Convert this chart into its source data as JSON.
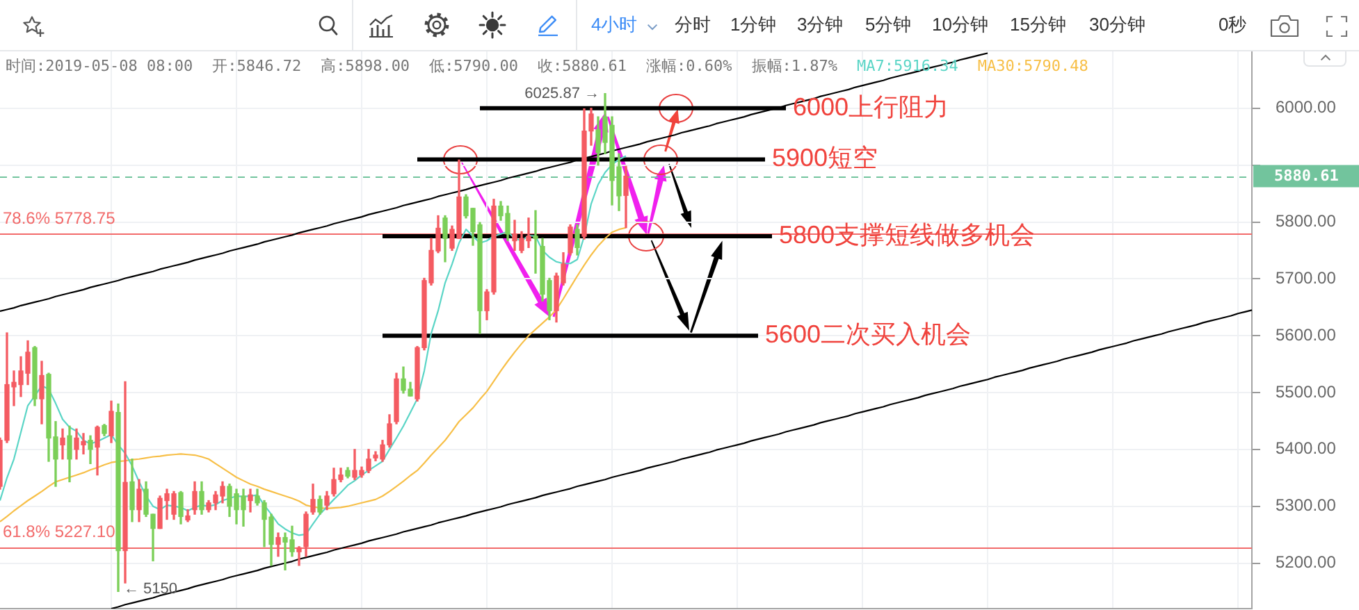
{
  "chart_data": {
    "type": "candlestick",
    "categories": [
      null,
      null,
      null,
      null,
      null,
      null,
      null,
      null,
      null,
      null,
      null,
      null,
      null,
      null,
      null,
      null,
      null,
      null,
      null,
      null,
      null,
      null,
      null,
      null,
      null,
      null,
      null,
      null,
      null,
      null,
      null,
      null,
      null,
      null,
      null,
      null,
      null,
      null,
      null,
      null,
      null,
      null,
      null,
      null,
      null,
      null,
      null,
      null,
      null,
      null,
      null,
      null,
      null,
      null,
      null,
      null,
      null,
      null,
      null,
      null,
      null,
      null,
      null,
      null,
      null,
      null,
      null,
      null,
      null,
      null,
      null,
      null,
      null,
      null,
      null,
      null,
      null,
      null,
      null,
      null,
      null,
      null,
      null,
      null,
      null,
      null,
      null,
      null,
      null,
      null,
      null,
      null,
      null,
      null,
      null,
      null,
      null,
      null,
      null,
      null,
      null,
      null,
      null,
      null,
      null,
      null,
      null,
      null,
      null,
      null,
      null,
      null,
      null,
      null,
      null,
      null,
      null,
      null,
      null,
      null,
      null,
      null,
      null,
      null,
      null,
      null,
      null,
      null,
      null,
      null,
      null,
      null,
      null,
      null,
      null,
      null,
      null,
      null,
      null,
      null,
      null,
      null,
      null,
      null,
      null,
      null,
      null,
      null,
      null,
      null,
      null,
      null,
      null,
      null,
      null,
      null,
      null,
      null,
      null,
      null,
      null,
      null,
      null,
      null,
      null,
      null,
      null,
      null,
      null,
      null,
      null,
      null,
      null,
      null,
      null,
      null,
      null,
      null,
      null,
      null,
      null
    ],
    "ohlc": [
      [
        5335,
        5420,
        5330,
        5416
      ],
      [
        5416,
        5605,
        5412,
        5514
      ],
      [
        5510,
        5538,
        5477,
        5518
      ],
      [
        5514,
        5563,
        5493,
        5538
      ],
      [
        5534,
        5591,
        5514,
        5571
      ],
      [
        5579,
        5581,
        5477,
        5489
      ],
      [
        5489,
        5555,
        5445,
        5530
      ],
      [
        5532,
        5534,
        5379,
        5420
      ],
      [
        5422,
        5449,
        5335,
        5383
      ],
      [
        5408,
        5436,
        5383,
        5420
      ],
      [
        5424,
        5441,
        5343,
        5383
      ],
      [
        5400,
        5436,
        5383,
        5420
      ],
      [
        5408,
        5428,
        5392,
        5414
      ],
      [
        5416,
        5424,
        5375,
        5400
      ],
      [
        5404,
        5441,
        5355,
        5439
      ],
      [
        5442,
        5444,
        5424,
        5428
      ],
      [
        5424,
        5485,
        5412,
        5467
      ],
      [
        5465,
        5480,
        5150,
        5222
      ],
      [
        5222,
        5519,
        5165,
        5342
      ],
      [
        5343,
        5383,
        5273,
        5294
      ],
      [
        5294,
        5347,
        5273,
        5330
      ],
      [
        5330,
        5343,
        5282,
        5286
      ],
      [
        5286,
        5286,
        5204,
        5261
      ],
      [
        5261,
        5318,
        5261,
        5314
      ],
      [
        5310,
        5330,
        5277,
        5322
      ],
      [
        5286,
        5326,
        5277,
        5322
      ],
      [
        5324,
        5326,
        5269,
        5282
      ],
      [
        5276,
        5294,
        5273,
        5283
      ],
      [
        5294,
        5343,
        5286,
        5326
      ],
      [
        5326,
        5343,
        5286,
        5294
      ],
      [
        5294,
        5310,
        5290,
        5306
      ],
      [
        5306,
        5326,
        5294,
        5320
      ],
      [
        5318,
        5343,
        5306,
        5335
      ],
      [
        5335,
        5339,
        5282,
        5300
      ],
      [
        5322,
        5330,
        5269,
        5294
      ],
      [
        5318,
        5330,
        5265,
        5294
      ],
      [
        5310,
        5330,
        5290,
        5320
      ],
      [
        5318,
        5330,
        5302,
        5306
      ],
      [
        5306,
        5310,
        5229,
        5277
      ],
      [
        5281,
        5286,
        5196,
        5233
      ],
      [
        5233,
        5253,
        5212,
        5245
      ],
      [
        5245,
        5253,
        5188,
        5237
      ],
      [
        5241,
        5265,
        5212,
        5220
      ],
      [
        5220,
        5229,
        5196,
        5227
      ],
      [
        5229,
        5290,
        5212,
        5286
      ],
      [
        5290,
        5339,
        5286,
        5312
      ],
      [
        5312,
        5318,
        5286,
        5290
      ],
      [
        5302,
        5326,
        5294,
        5318
      ],
      [
        5322,
        5367,
        5318,
        5347
      ],
      [
        5347,
        5367,
        5343,
        5355
      ],
      [
        5363,
        5368,
        5350,
        5353
      ],
      [
        5351,
        5400,
        5347,
        5363
      ],
      [
        5355,
        5369,
        5351,
        5363
      ],
      [
        5363,
        5400,
        5359,
        5383
      ],
      [
        5385,
        5396,
        5380,
        5390
      ],
      [
        5383,
        5416,
        5379,
        5408
      ],
      [
        5408,
        5461,
        5404,
        5445
      ],
      [
        5449,
        5534,
        5445,
        5524
      ],
      [
        5524,
        5545,
        5499,
        5504
      ],
      [
        5506,
        5518,
        5494,
        5494
      ],
      [
        5489,
        5581,
        5485,
        5579
      ],
      [
        5579,
        5701,
        5575,
        5697
      ],
      [
        5693,
        5771,
        5689,
        5750
      ],
      [
        5749,
        5811,
        5746,
        5789
      ],
      [
        5807,
        5811,
        5730,
        5771
      ],
      [
        5754,
        5793,
        5750,
        5787
      ],
      [
        5771,
        5909,
        5771,
        5844
      ],
      [
        5844,
        5848,
        5807,
        5811
      ],
      [
        5824,
        5824,
        5759,
        5783
      ],
      [
        5795,
        5799,
        5604,
        5644
      ],
      [
        5644,
        5681,
        5628,
        5677
      ],
      [
        5677,
        5840,
        5673,
        5828
      ],
      [
        5828,
        5836,
        5803,
        5811
      ],
      [
        5815,
        5828,
        5767,
        5779
      ],
      [
        5767,
        5803,
        5750,
        5779
      ],
      [
        5750,
        5783,
        5746,
        5771
      ],
      [
        5767,
        5807,
        5755,
        5775
      ],
      [
        5775,
        5820,
        5710,
        5771
      ],
      [
        5757,
        5771,
        5661,
        5673
      ],
      [
        5697,
        5701,
        5628,
        5644
      ],
      [
        5644,
        5710,
        5624,
        5705
      ],
      [
        5693,
        5746,
        5689,
        5726
      ],
      [
        5746,
        5795,
        5742,
        5791
      ],
      [
        5787,
        5795,
        5742,
        5755
      ],
      [
        5775,
        5999,
        5770,
        5960
      ],
      [
        5960,
        6000,
        5935,
        5990
      ],
      [
        5962,
        5985,
        5900,
        5922
      ],
      [
        5985,
        6025.87,
        5920,
        5940
      ],
      [
        5970,
        5985,
        5830,
        5873
      ],
      [
        5897,
        5920,
        5820,
        5846
      ],
      [
        5846.72,
        5898,
        5790,
        5880.61
      ],
      null,
      null,
      null,
      null,
      null,
      null,
      null,
      null,
      null,
      null,
      null,
      null,
      null,
      null,
      null,
      null,
      null,
      null,
      null,
      null,
      null,
      null,
      null,
      null,
      null,
      null,
      null,
      null,
      null,
      null,
      null,
      null,
      null,
      null,
      null,
      null,
      null,
      null,
      null,
      null,
      null,
      null,
      null,
      null,
      null,
      null,
      null,
      null,
      null,
      null,
      null,
      null,
      null,
      null,
      null,
      null,
      null,
      null,
      null,
      null,
      null,
      null,
      null,
      null,
      null,
      null,
      null,
      null,
      null,
      null,
      null,
      null,
      null,
      null,
      null,
      null,
      null,
      null,
      null,
      null,
      null,
      null,
      null,
      null,
      null,
      null,
      null,
      null,
      null,
      null
    ],
    "colors": [
      "#f45b62",
      "#f45b62",
      "#f45b62",
      "#f45b62",
      "#f45b62",
      "#7bcf58",
      "#f45b62",
      "#7bcf58",
      "#7bcf58",
      "#f45b62",
      "#7bcf58",
      "#f45b62",
      "#f45b62",
      "#7bcf58",
      "#f45b62",
      "#7bcf58",
      "#f45b62",
      "#7bcf58",
      "#f45b62",
      "#7bcf58",
      "#f45b62",
      "#7bcf58",
      "#7bcf58",
      "#f45b62",
      "#f45b62",
      "#f45b62",
      "#7bcf58",
      "#f45b62",
      "#f45b62",
      "#7bcf58",
      "#f45b62",
      "#f45b62",
      "#f45b62",
      "#7bcf58",
      "#7bcf58",
      "#7bcf58",
      "#f45b62",
      "#7bcf58",
      "#7bcf58",
      "#7bcf58",
      "#f45b62",
      "#7bcf58",
      "#7bcf58",
      "#f45b62",
      "#f45b62",
      "#f45b62",
      "#7bcf58",
      "#f45b62",
      "#f45b62",
      "#f45b62",
      "#7bcf58",
      "#f45b62",
      "#f45b62",
      "#f45b62",
      "#f45b62",
      "#f45b62",
      "#f45b62",
      "#f45b62",
      "#7bcf58",
      "#7bcf58",
      "#f45b62",
      "#f45b62",
      "#f45b62",
      "#f45b62",
      "#7bcf58",
      "#f45b62",
      "#f45b62",
      "#7bcf58",
      "#7bcf58",
      "#7bcf58",
      "#f45b62",
      "#f45b62",
      "#7bcf58",
      "#7bcf58",
      "#f45b62",
      "#f45b62",
      "#f45b62",
      "#7bcf58",
      "#7bcf58",
      "#7bcf58",
      "#f45b62",
      "#f45b62",
      "#f45b62",
      "#7bcf58",
      "#f45b62",
      "#f45b62",
      "#7bcf58",
      "#7bcf58",
      "#7bcf58",
      "#7bcf58",
      "#f45b62",
      null,
      null,
      null,
      null,
      null,
      null,
      null,
      null,
      null,
      null,
      null,
      null,
      null,
      null,
      null,
      null,
      null,
      null,
      null,
      null,
      null,
      null,
      null,
      null,
      null,
      null,
      null,
      null,
      null,
      null,
      null,
      null,
      null,
      null,
      null,
      null,
      null,
      null,
      null,
      null,
      null,
      null,
      null,
      null,
      null,
      null,
      null,
      null,
      null,
      null,
      null,
      null,
      null,
      null,
      null,
      null,
      null,
      null,
      null,
      null,
      null,
      null,
      null,
      null,
      null,
      null,
      null,
      null,
      null,
      null,
      null,
      null,
      null,
      null,
      null,
      null,
      null,
      null,
      null,
      null,
      null,
      null,
      null,
      null,
      null,
      null,
      null,
      null,
      null,
      null
    ],
    "series": [
      {
        "type": "line",
        "name": "MA7:5916.34",
        "color": "#5ad5c6",
        "values": [
          5310,
          5350,
          5383,
          5430,
          5477,
          5494,
          5512,
          5506,
          5481,
          5453,
          5439,
          5432,
          5416,
          5410,
          5414,
          5420,
          5426,
          5408,
          5393,
          5371,
          5343,
          5318,
          5300,
          5294,
          5302,
          5300,
          5298,
          5292,
          5298,
          5302,
          5300,
          5303,
          5310,
          5314,
          5318,
          5317,
          5318,
          5320,
          5302,
          5286,
          5269,
          5260,
          5253,
          5249,
          5251,
          5269,
          5286,
          5299,
          5312,
          5324,
          5337,
          5345,
          5355,
          5363,
          5371,
          5379,
          5400,
          5420,
          5441,
          5465,
          5489,
          5538,
          5604,
          5644,
          5693,
          5726,
          5763,
          5787,
          5775,
          5763,
          5767,
          5775,
          5779,
          5783,
          5771,
          5767,
          5776,
          5775,
          5750,
          5738,
          5730,
          5727,
          5727,
          5734,
          5775,
          5832,
          5866,
          5887,
          5901,
          5910,
          5916,
          null,
          null,
          null,
          null,
          null,
          null,
          null,
          null,
          null,
          null,
          null,
          null,
          null,
          null,
          null,
          null,
          null,
          null,
          null,
          null,
          null,
          null,
          null,
          null,
          null,
          null,
          null,
          null,
          null,
          null,
          null,
          null,
          null,
          null,
          null,
          null,
          null,
          null,
          null,
          null,
          null,
          null,
          null,
          null,
          null,
          null,
          null,
          null,
          null,
          null,
          null,
          null,
          null,
          null,
          null,
          null,
          null,
          null,
          null,
          null,
          null,
          null,
          null,
          null,
          null,
          null,
          null,
          null,
          null,
          null,
          null,
          null,
          null,
          null,
          null,
          null,
          null,
          null,
          null,
          null,
          null,
          null,
          null,
          null,
          null,
          null,
          null,
          null,
          null,
          null
        ]
      },
      {
        "type": "line",
        "name": "MA30:5790.48",
        "color": "#f7bf47",
        "values": [
          5273,
          5282,
          5292,
          5301,
          5310,
          5318,
          5326,
          5335,
          5343,
          5347,
          5351,
          5355,
          5359,
          5364,
          5368,
          5373,
          5377,
          5379,
          5380,
          5382,
          5383,
          5385,
          5387,
          5388,
          5390,
          5391,
          5392,
          5391,
          5390,
          5387,
          5383,
          5375,
          5367,
          5359,
          5351,
          5345,
          5339,
          5335,
          5330,
          5326,
          5322,
          5318,
          5314,
          5309,
          5302,
          5299,
          5297,
          5296,
          5297,
          5298,
          5300,
          5303,
          5306,
          5309,
          5312,
          5318,
          5326,
          5335,
          5344,
          5354,
          5363,
          5376,
          5390,
          5403,
          5416,
          5432,
          5449,
          5461,
          5473,
          5488,
          5502,
          5520,
          5538,
          5555,
          5571,
          5586,
          5600,
          5611,
          5622,
          5633,
          5646,
          5665,
          5685,
          5705,
          5724,
          5742,
          5758,
          5771,
          5782,
          5787,
          5790,
          null,
          null,
          null,
          null,
          null,
          null,
          null,
          null,
          null,
          null,
          null,
          null,
          null,
          null,
          null,
          null,
          null,
          null,
          null,
          null,
          null,
          null,
          null,
          null,
          null,
          null,
          null,
          null,
          null,
          null,
          null,
          null,
          null,
          null,
          null,
          null,
          null,
          null,
          null,
          null,
          null,
          null,
          null,
          null,
          null,
          null,
          null,
          null,
          null,
          null,
          null,
          null,
          null,
          null,
          null,
          null,
          null,
          null,
          null,
          null,
          null,
          null,
          null,
          null,
          null,
          null,
          null,
          null,
          null,
          null,
          null,
          null,
          null,
          null,
          null,
          null,
          null,
          null,
          null,
          null,
          null,
          null,
          null,
          null,
          null,
          null,
          null,
          null,
          null,
          null
        ]
      },
      {
        "type": "line",
        "color": "#000000",
        "values": [
          null,
          null,
          null,
          null,
          null,
          null,
          null,
          null,
          null,
          null,
          null,
          null,
          null,
          null,
          null,
          null,
          null,
          null,
          null,
          null,
          null,
          null,
          null,
          null,
          null,
          null,
          null,
          null,
          null,
          null,
          null,
          null,
          null,
          null,
          null,
          null,
          null,
          null,
          null,
          null,
          null,
          null,
          null,
          null,
          null,
          null,
          null,
          null,
          null,
          null,
          null,
          null,
          null,
          null,
          null,
          null,
          null,
          null,
          null,
          null,
          null,
          null,
          null,
          null,
          null,
          null,
          null,
          null,
          null,
          6000,
          6000,
          6000,
          6000,
          6000,
          6000,
          6000,
          6000,
          6000,
          6000,
          6000,
          6000,
          6000,
          6000,
          6000,
          6000,
          6000,
          6000,
          6000,
          6000,
          6000,
          6000,
          6000,
          6000,
          6000,
          6000,
          6000,
          6000,
          6000,
          6000,
          6000,
          6000,
          6000,
          6000,
          6000,
          6000,
          6000,
          6000,
          6000,
          6000,
          6000,
          6000,
          6000,
          6000,
          6000,
          null,
          null,
          null,
          null,
          null,
          null,
          null,
          null,
          null,
          null,
          null,
          null,
          null,
          null,
          null,
          null,
          null,
          null,
          null,
          null,
          null,
          null,
          null,
          null,
          null,
          null,
          null,
          null,
          null,
          null,
          null,
          null,
          null,
          null,
          null,
          null,
          null,
          null,
          null,
          null,
          null,
          null,
          null,
          null,
          null,
          null,
          null,
          null,
          null,
          null,
          null,
          null,
          null,
          null,
          null,
          null,
          null,
          null,
          null,
          null,
          null,
          null,
          null,
          null,
          null,
          null,
          null
        ]
      },
      {
        "type": "line",
        "color": "#000000",
        "values": [
          null,
          null,
          null,
          null,
          null,
          null,
          null,
          null,
          null,
          null,
          null,
          null,
          null,
          null,
          null,
          null,
          null,
          null,
          null,
          null,
          null,
          null,
          null,
          null,
          null,
          null,
          null,
          null,
          null,
          null,
          null,
          null,
          null,
          null,
          null,
          null,
          null,
          null,
          null,
          null,
          null,
          null,
          null,
          null,
          null,
          null,
          null,
          null,
          null,
          null,
          null,
          null,
          null,
          null,
          null,
          null,
          null,
          null,
          null,
          null,
          5910,
          5910,
          5910,
          5910,
          5910,
          5910,
          5910,
          5910,
          5910,
          5910,
          5910,
          5910,
          5910,
          5910,
          5910,
          5910,
          5910,
          5910,
          5910,
          5910,
          5910,
          5910,
          5910,
          5910,
          5910,
          5910,
          5910,
          5910,
          5910,
          5910,
          5910,
          5910,
          5910,
          5910,
          5910,
          5910,
          5910,
          5910,
          5910,
          5910,
          5910,
          5910,
          5910,
          5910,
          5910,
          5910,
          5910,
          5910,
          5910,
          5910,
          5910,
          null,
          null,
          null,
          null,
          null,
          null,
          null,
          null,
          null,
          null,
          null,
          null,
          null,
          null,
          null,
          null,
          null,
          null,
          null,
          null,
          null,
          null,
          null,
          null,
          null,
          null,
          null,
          null,
          null,
          null,
          null,
          null,
          null,
          null,
          null,
          null,
          null,
          null,
          null,
          null,
          null,
          null,
          null,
          null,
          null,
          null,
          null,
          null,
          null,
          null,
          null,
          null,
          null,
          null,
          null,
          null,
          null,
          null,
          null,
          null,
          null,
          null,
          null,
          null,
          null,
          null,
          null,
          null,
          null,
          null
        ]
      },
      {
        "type": "line",
        "color": "#000000",
        "values": [
          null,
          null,
          null,
          null,
          null,
          null,
          null,
          null,
          null,
          null,
          null,
          null,
          null,
          null,
          null,
          null,
          null,
          null,
          null,
          null,
          null,
          null,
          null,
          null,
          null,
          null,
          null,
          null,
          null,
          null,
          null,
          null,
          null,
          null,
          null,
          null,
          null,
          null,
          null,
          null,
          null,
          null,
          null,
          null,
          null,
          null,
          null,
          null,
          null,
          null,
          null,
          null,
          null,
          null,
          null,
          5775,
          5775,
          5775,
          5775,
          5775,
          5775,
          5775,
          5775,
          5775,
          5775,
          5775,
          5775,
          5775,
          5775,
          5775,
          5775,
          5775,
          5775,
          5775,
          5775,
          5775,
          5775,
          5775,
          5775,
          5775,
          5775,
          5775,
          5775,
          5775,
          5775,
          5775,
          5775,
          5775,
          5775,
          5775,
          5775,
          5775,
          5775,
          5775,
          5775,
          5775,
          5775,
          5775,
          5775,
          5775,
          5775,
          5775,
          5775,
          5775,
          5775,
          5775,
          5775,
          5775,
          5775,
          5775,
          5775,
          5775,
          null,
          null,
          null,
          null,
          null,
          null,
          null,
          null,
          null,
          null,
          null,
          null,
          null,
          null,
          null,
          null,
          null,
          null,
          null,
          null,
          null,
          null,
          null,
          null,
          null,
          null,
          null,
          null,
          null,
          null,
          null,
          null,
          null,
          null,
          null,
          null,
          null,
          null,
          null,
          null,
          null,
          null,
          null,
          null,
          null,
          null,
          null,
          null,
          null,
          null,
          null,
          null,
          null,
          null,
          null,
          null,
          null,
          null,
          null,
          null,
          null,
          null,
          null,
          null,
          null,
          null,
          null,
          null,
          null
        ]
      },
      {
        "type": "line",
        "color": "#000000",
        "values": [
          null,
          null,
          null,
          null,
          null,
          null,
          null,
          null,
          null,
          null,
          null,
          null,
          null,
          null,
          null,
          null,
          null,
          null,
          null,
          null,
          null,
          null,
          null,
          null,
          null,
          null,
          null,
          null,
          null,
          null,
          null,
          null,
          null,
          null,
          null,
          null,
          null,
          null,
          null,
          null,
          null,
          null,
          null,
          null,
          null,
          null,
          null,
          null,
          null,
          null,
          null,
          null,
          null,
          null,
          null,
          5600,
          5600,
          5600,
          5600,
          5600,
          5600,
          5600,
          5600,
          5600,
          5600,
          5600,
          5600,
          5600,
          5600,
          5600,
          5600,
          5600,
          5600,
          5600,
          5600,
          5600,
          5600,
          5600,
          5600,
          5600,
          5600,
          5600,
          5600,
          5600,
          5600,
          5600,
          5600,
          5600,
          5600,
          5600,
          5600,
          5600,
          5600,
          5600,
          5600,
          5600,
          5600,
          5600,
          5600,
          5600,
          5600,
          5600,
          5600,
          5600,
          5600,
          5600,
          5600,
          5600,
          5600,
          5600,
          null,
          null,
          null,
          null,
          null,
          null,
          null,
          null,
          null,
          null,
          null,
          null,
          null,
          null,
          null,
          null,
          null,
          null,
          null,
          null,
          null,
          null,
          null,
          null,
          null,
          null,
          null,
          null,
          null,
          null,
          null,
          null,
          null,
          null,
          null,
          null,
          null,
          null,
          null,
          null,
          null,
          null,
          null,
          null,
          null,
          null,
          null,
          null,
          null,
          null,
          null,
          null,
          null,
          null,
          null,
          null,
          null,
          null,
          null,
          null,
          null,
          null,
          null,
          null,
          null,
          null,
          null,
          null,
          null,
          null,
          null
        ]
      },
      {
        "type": "line",
        "color": "#000000",
        "values": [
          5643,
          5646,
          5649,
          5653,
          5656,
          5659,
          5662,
          5665,
          5669,
          5672,
          5675,
          5678,
          5681,
          5685,
          5688,
          5691,
          5694,
          5697,
          5701,
          5704,
          5707,
          5710,
          5713,
          5717,
          5720,
          5723,
          5726,
          5729,
          5733,
          5736,
          5739,
          5742,
          5745,
          5749,
          5752,
          5755,
          5758,
          5761,
          5765,
          5768,
          5771,
          5774,
          5777,
          5781,
          5784,
          5787,
          5790,
          5793,
          5797,
          5800,
          5803,
          5806,
          5809,
          5813,
          5816,
          5819,
          5822,
          5825,
          5829,
          5832,
          5835,
          5838,
          5841,
          5845,
          5848,
          5851,
          5854,
          5857,
          5861,
          5864,
          5867,
          5870,
          5873,
          5877,
          5880,
          5883,
          5886,
          5889,
          5893,
          5896,
          5899,
          5902,
          5905,
          5909,
          5912,
          5915,
          5918,
          5921,
          5925,
          5928,
          5931,
          5934,
          5937,
          5941,
          5944,
          5947,
          5950,
          5953,
          5957,
          5960,
          5963,
          5966,
          5969,
          5973,
          5976,
          5979,
          5982,
          5985,
          5989,
          5992,
          5995,
          5998,
          6001,
          6005,
          6008,
          6011,
          6014,
          6017,
          6021,
          6024,
          6027,
          6030,
          6033,
          6037,
          6040,
          6043,
          6046,
          6049,
          6053,
          6056,
          6059,
          6062,
          6065,
          6069,
          6072,
          6075,
          6078,
          6081,
          6085,
          6088,
          6091,
          6094,
          6097,
          null,
          null,
          null,
          null,
          null,
          null,
          null,
          null,
          null,
          null,
          null,
          null,
          null,
          null,
          null,
          null,
          null,
          null,
          null,
          null,
          null,
          null,
          null,
          null,
          null,
          null,
          null,
          null,
          null,
          null,
          null,
          null,
          null,
          null,
          null,
          null,
          null,
          null
        ]
      },
      {
        "type": "line",
        "color": "#000000",
        "values": [
          null,
          null,
          null,
          null,
          null,
          null,
          null,
          null,
          null,
          null,
          null,
          null,
          null,
          null,
          null,
          null,
          5120,
          5123,
          5127,
          5130,
          5133,
          5136,
          5139,
          5143,
          5146,
          5149,
          5152,
          5155,
          5159,
          5162,
          5165,
          5168,
          5171,
          5175,
          5178,
          5181,
          5184,
          5187,
          5191,
          5194,
          5197,
          5200,
          5203,
          5207,
          5210,
          5213,
          5216,
          5219,
          5223,
          5226,
          5229,
          5232,
          5235,
          5239,
          5242,
          5245,
          5248,
          5251,
          5255,
          5258,
          5261,
          5264,
          5267,
          5271,
          5274,
          5277,
          5280,
          5283,
          5287,
          5290,
          5293,
          5296,
          5299,
          5303,
          5306,
          5309,
          5312,
          5315,
          5319,
          5322,
          5325,
          5328,
          5331,
          5335,
          5338,
          5341,
          5344,
          5347,
          5351,
          5354,
          5357,
          5360,
          5363,
          5367,
          5370,
          5373,
          5376,
          5379,
          5383,
          5386,
          5389,
          5392,
          5395,
          5399,
          5402,
          5405,
          5408,
          5411,
          5415,
          5418,
          5421,
          5424,
          5427,
          5431,
          5434,
          5437,
          5440,
          5443,
          5447,
          5450,
          5453,
          5456,
          5459,
          5463,
          5466,
          5469,
          5472,
          5475,
          5479,
          5482,
          5485,
          5488,
          5491,
          5495,
          5498,
          5501,
          5504,
          5507,
          5511,
          5514,
          5517,
          5520,
          5523,
          5527,
          5530,
          5533,
          5536,
          5539,
          5543,
          5546,
          5549,
          5552,
          5555,
          5559,
          5562,
          5565,
          5568,
          5571,
          5575,
          5578,
          5581,
          5584,
          5587,
          5591,
          5594,
          5597,
          5600,
          5603,
          5607,
          5610,
          5613,
          5616,
          5619,
          5623,
          5626,
          5629,
          5632,
          5635,
          5639,
          5642,
          5645
        ]
      }
    ],
    "ylim": [
      5120,
      6100
    ],
    "yticks": [
      {
        "value": 5200,
        "label": "5200.00"
      },
      {
        "value": 5300,
        "label": "5300.00"
      },
      {
        "value": 5400,
        "label": "5400.00"
      },
      {
        "value": 5500,
        "label": "5500.00"
      },
      {
        "value": 5600,
        "label": "5600.00"
      },
      {
        "value": 5700,
        "label": "5700.00"
      },
      {
        "value": 5800,
        "label": "5800.00"
      },
      {
        "value": 5900,
        "label": null
      },
      {
        "value": 6000,
        "label": "6000.00"
      }
    ],
    "ref_lines": [
      {
        "axis": "y",
        "value": 5880.61,
        "label": "5880.61",
        "color": "#72c49d",
        "line_style": "dashed"
      },
      {
        "axis": "y",
        "value": 5778.75,
        "label": "78.6% 5778.75",
        "color": "#f26a6a"
      },
      {
        "axis": "y",
        "value": 5227.1,
        "label": "61.8% 5227.10",
        "color": "#f26a6a"
      }
    ],
    "annotations": [
      "4小时",
      "分时",
      "1分钟",
      "3分钟",
      "5分钟",
      "10分钟",
      "15分钟",
      "30分钟",
      "0秒",
      "时间:2019-05-08 08:00",
      "开:5846.72",
      "高:5898.00",
      "低:5790.00",
      "收:5880.61",
      "涨幅:0.60%",
      "振幅:1.87%",
      "6025.87 →",
      "← 5150",
      "6000上行阻力",
      "5900短空",
      "5800支撑短线做多机会",
      "5600二次买入机会"
    ],
    "grid": true,
    "legend": "top left",
    "tick_labels": "y",
    "marker": "none"
  }
}
